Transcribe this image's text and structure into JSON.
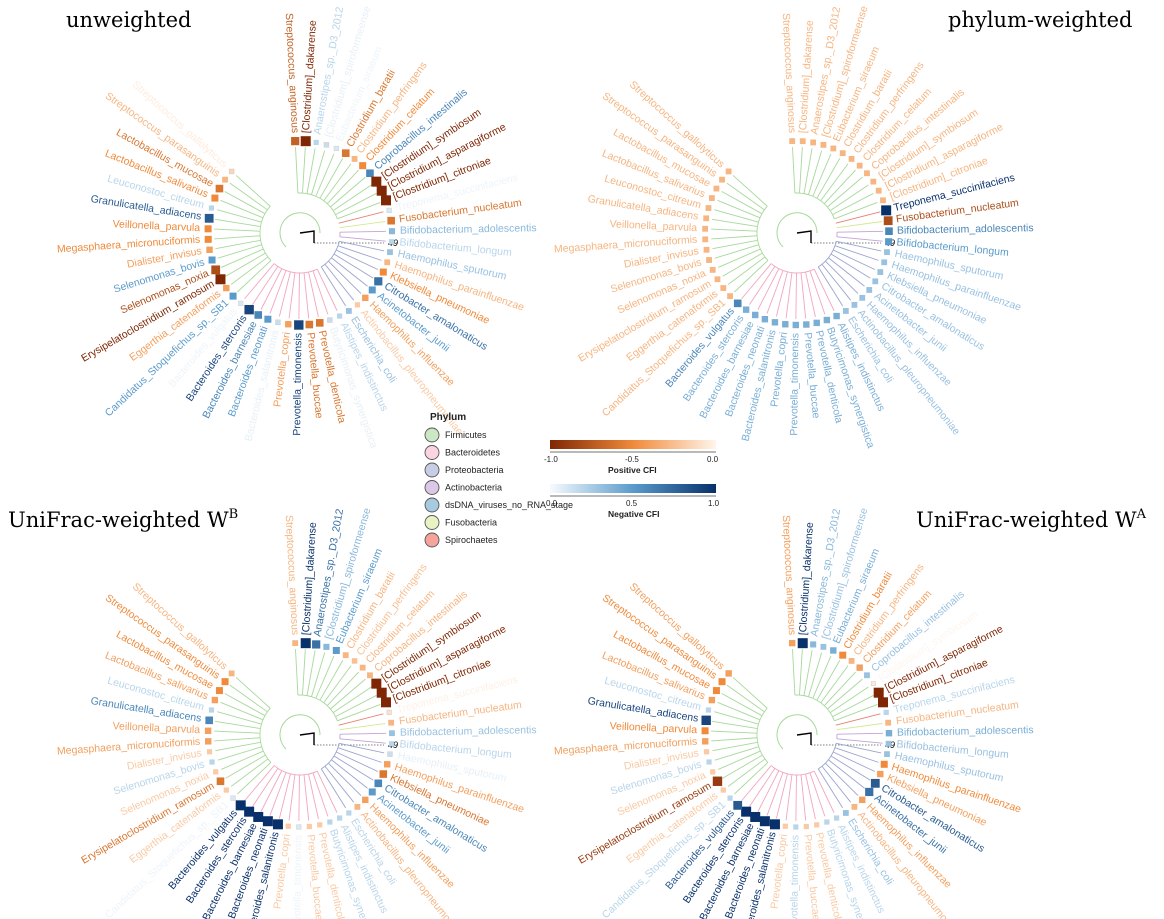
{
  "panels": [
    {
      "title": "unweighted",
      "sup": ""
    },
    {
      "title": "phylum-weighted",
      "sup": ""
    },
    {
      "title": "UniFrac-weighted W",
      "sup": "B"
    },
    {
      "title": "UniFrac-weighted W",
      "sup": "A"
    }
  ],
  "node_label": "49",
  "species": [
    {
      "name": "Streptococcus_anginosus",
      "phylum": "Firmicutes"
    },
    {
      "name": "[Clostridium]_dakarense",
      "phylum": "Firmicutes"
    },
    {
      "name": "Anaerostipes_sp._D3_2012",
      "phylum": "Firmicutes"
    },
    {
      "name": "[Clostridium]_spiroformeense",
      "phylum": "Firmicutes"
    },
    {
      "name": "Eubacterium_siraeum",
      "phylum": "Firmicutes"
    },
    {
      "name": "Clostridium_baratii",
      "phylum": "Firmicutes"
    },
    {
      "name": "Clostridium_perfringens",
      "phylum": "Firmicutes"
    },
    {
      "name": "Clostridium_celatum",
      "phylum": "Firmicutes"
    },
    {
      "name": "Coprobacillus_intestinalis",
      "phylum": "Firmicutes"
    },
    {
      "name": "[Clostridium]_symbiosum",
      "phylum": "Firmicutes"
    },
    {
      "name": "[Clostridium]_asparagiforme",
      "phylum": "Firmicutes"
    },
    {
      "name": "[Clostridium]_citroniae",
      "phylum": "Firmicutes"
    },
    {
      "name": "Treponema_succinifaciens",
      "phylum": "Spirochaetes"
    },
    {
      "name": "Fusobacterium_nucleatum",
      "phylum": "Fusobacteria"
    },
    {
      "name": "Bifidobacterium_adolescentis",
      "phylum": "Actinobacteria"
    },
    {
      "name": "Bifidobacterium_longum",
      "phylum": "Actinobacteria"
    },
    {
      "name": "Haemophilus_sputorum",
      "phylum": "Proteobacteria"
    },
    {
      "name": "Haemophilus_parainfluenzae",
      "phylum": "Proteobacteria"
    },
    {
      "name": "Klebsiella_pneumoniae",
      "phylum": "Proteobacteria"
    },
    {
      "name": "Citrobacter_amalonaticus",
      "phylum": "Proteobacteria"
    },
    {
      "name": "Acinetobacter_junii",
      "phylum": "Proteobacteria"
    },
    {
      "name": "Haemophilus_influenzae",
      "phylum": "Proteobacteria"
    },
    {
      "name": "Actinobacillus_pleuropneumoniae",
      "phylum": "Proteobacteria"
    },
    {
      "name": "Escherichia_coli",
      "phylum": "Proteobacteria"
    },
    {
      "name": "Alistipes_indistinctus",
      "phylum": "Bacteroidetes"
    },
    {
      "name": "Butyricimonas_synergistica",
      "phylum": "Bacteroidetes"
    },
    {
      "name": "Prevotella_denticola",
      "phylum": "Bacteroidetes"
    },
    {
      "name": "Prevotella_buccae",
      "phylum": "Bacteroidetes"
    },
    {
      "name": "Prevotella_timonensis",
      "phylum": "Bacteroidetes"
    },
    {
      "name": "Prevotella_copri",
      "phylum": "Bacteroidetes"
    },
    {
      "name": "Bacteroides_salanitronis",
      "phylum": "Bacteroidetes"
    },
    {
      "name": "Bacteroides_neonati",
      "phylum": "Bacteroidetes"
    },
    {
      "name": "Bacteroides_barnesiae",
      "phylum": "Bacteroidetes"
    },
    {
      "name": "Bacteroides_stercoris",
      "phylum": "Bacteroidetes"
    },
    {
      "name": "Bacteroides_vulgatus",
      "phylum": "Bacteroidetes"
    },
    {
      "name": "Candidatus_Stoquefichus_sp._SB1",
      "phylum": "Firmicutes"
    },
    {
      "name": "Eggerthia_catenaformis",
      "phylum": "Firmicutes"
    },
    {
      "name": "Erysipelatoclostridium_ramosum",
      "phylum": "Firmicutes"
    },
    {
      "name": "Selenomonas_noxia",
      "phylum": "Firmicutes"
    },
    {
      "name": "Selenomonas_bovis",
      "phylum": "Firmicutes"
    },
    {
      "name": "Dialister_invisus",
      "phylum": "Firmicutes"
    },
    {
      "name": "Megasphaera_micronuciformis",
      "phylum": "Firmicutes"
    },
    {
      "name": "Veillonella_parvula",
      "phylum": "Firmicutes"
    },
    {
      "name": "Granulicatella_adiacens",
      "phylum": "Firmicutes"
    },
    {
      "name": "Leuconostoc_citreum",
      "phylum": "Firmicutes"
    },
    {
      "name": "Lactobacillus_salivarius",
      "phylum": "Firmicutes"
    },
    {
      "name": "Lactobacillus_mucosae",
      "phylum": "Firmicutes"
    },
    {
      "name": "Streptococcus_parasanguinis",
      "phylum": "Firmicutes"
    },
    {
      "name": "Streptococcus_gallolyticus",
      "phylum": "Firmicutes"
    }
  ],
  "cfi": {
    "unweighted": [
      -0.7,
      -1.0,
      0.2,
      0.15,
      0.1,
      -0.6,
      -0.3,
      -0.5,
      0.6,
      -1.0,
      -1.0,
      -1.0,
      0.1,
      -0.6,
      0.35,
      0.2,
      0.3,
      -0.3,
      -0.5,
      0.7,
      0.5,
      -0.4,
      -0.2,
      0.3,
      0.2,
      0.15,
      -0.6,
      -0.6,
      0.9,
      -0.4,
      0.15,
      0.5,
      0.6,
      0.9,
      0.1,
      0.5,
      -0.4,
      -1.0,
      -0.8,
      0.5,
      -0.4,
      -0.5,
      -0.5,
      0.8,
      0.2,
      -0.5,
      -0.6,
      -0.3,
      -0.15
    ],
    "phylum-weighted": [
      -0.3,
      -0.3,
      -0.3,
      -0.3,
      -0.3,
      -0.3,
      -0.3,
      -0.3,
      -0.3,
      -0.3,
      -0.3,
      -0.3,
      1.0,
      -0.8,
      0.6,
      0.5,
      0.3,
      0.3,
      0.3,
      0.3,
      0.3,
      0.3,
      0.3,
      0.3,
      0.4,
      0.4,
      0.4,
      0.4,
      0.4,
      0.4,
      0.4,
      0.4,
      0.4,
      0.4,
      0.6,
      -0.3,
      -0.3,
      -0.3,
      -0.3,
      -0.3,
      -0.3,
      -0.3,
      -0.3,
      -0.3,
      -0.3,
      -0.3,
      -0.3,
      -0.3,
      -0.3
    ],
    "unifrac-B": [
      -0.3,
      1.0,
      0.7,
      0.35,
      0.5,
      -0.3,
      -0.25,
      -0.3,
      -0.3,
      -1.0,
      -1.0,
      -1.0,
      -0.1,
      -0.3,
      0.3,
      0.2,
      0.15,
      -0.4,
      -0.6,
      0.6,
      0.5,
      -0.4,
      -0.3,
      0.2,
      0.2,
      0.2,
      -0.2,
      -0.2,
      0.1,
      -0.2,
      1.0,
      1.0,
      1.0,
      1.0,
      1.0,
      0.1,
      -0.2,
      -0.6,
      -0.2,
      0.2,
      -0.2,
      -0.4,
      -0.4,
      0.6,
      0.2,
      -0.4,
      -0.5,
      -0.5,
      -0.3
    ],
    "unifrac-A": [
      -0.4,
      1.0,
      0.35,
      0.3,
      0.4,
      -0.5,
      -0.3,
      -0.4,
      0.3,
      -0.05,
      -1.0,
      -1.0,
      0.2,
      -0.3,
      0.4,
      0.3,
      0.3,
      -0.5,
      -0.4,
      0.8,
      0.7,
      -0.4,
      -0.3,
      0.3,
      0.2,
      0.2,
      -0.2,
      -0.2,
      0.2,
      -0.2,
      1.0,
      1.0,
      1.0,
      1.0,
      0.8,
      0.2,
      -0.2,
      -0.9,
      -0.2,
      0.2,
      -0.2,
      -0.4,
      -0.5,
      0.9,
      0.2,
      -0.4,
      -0.5,
      -0.5,
      -0.4
    ]
  },
  "legend": {
    "title": "Phylum",
    "items": [
      {
        "label": "Firmicutes",
        "color": "#c9e8c3"
      },
      {
        "label": "Bacteroidetes",
        "color": "#fbd3e1"
      },
      {
        "label": "Proteobacteria",
        "color": "#c6cde4"
      },
      {
        "label": "Actinobacteria",
        "color": "#dcc7e6"
      },
      {
        "label": "dsDNA_viruses_no_RNA_stage",
        "color": "#a9c9e0"
      },
      {
        "label": "Fusobacteria",
        "color": "#e7f4c2"
      },
      {
        "label": "Spirochaetes",
        "color": "#f4a49a"
      }
    ]
  },
  "positive_scale": {
    "title": "Positive CFI",
    "ticks": [
      "-1.0",
      "-0.5",
      "0.0"
    ]
  },
  "negative_scale": {
    "title": "Negative CFI",
    "ticks": [
      "0.0",
      "0.5",
      "1.0"
    ]
  },
  "colors": {
    "positive_dark": "#7f2704",
    "positive_light": "#fff5eb",
    "negative_light": "#f7fbff",
    "negative_dark": "#08306b",
    "branch_firmicutes": "#a6d99a",
    "branch_bacteroidetes": "#f2a5bf",
    "branch_proteobacteria": "#9aa5cf",
    "branch_actinobacteria": "#c3a2d6",
    "branch_fusobacteria": "#d1ea8f",
    "branch_spirochaetes": "#e87f70"
  }
}
